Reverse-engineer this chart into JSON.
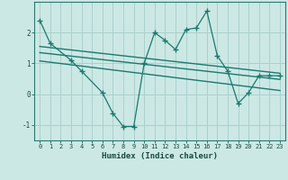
{
  "main_x": [
    0,
    1,
    3,
    4,
    6,
    7,
    8,
    9,
    10,
    11,
    12,
    13,
    14,
    15,
    16,
    17,
    18,
    19,
    20,
    21,
    22,
    23
  ],
  "main_y": [
    2.4,
    1.65,
    1.1,
    0.75,
    0.05,
    -0.62,
    -1.05,
    -1.05,
    1.0,
    2.0,
    1.75,
    1.45,
    2.1,
    2.15,
    2.7,
    1.25,
    0.75,
    -0.3,
    0.05,
    0.6,
    0.6,
    0.6
  ],
  "line1_x": [
    0,
    23
  ],
  "line1_y": [
    1.55,
    0.68
  ],
  "line2_x": [
    0,
    23
  ],
  "line2_y": [
    1.35,
    0.48
  ],
  "line3_x": [
    0,
    23
  ],
  "line3_y": [
    1.08,
    0.12
  ],
  "color_main": "#1a7a6e",
  "color_lines": "#1a7a6e",
  "bg_color": "#cce8e5",
  "grid_color": "#aad0cc",
  "xlabel": "Humidex (Indice chaleur)",
  "yticks": [
    -1,
    0,
    1,
    2
  ],
  "xticks": [
    0,
    1,
    2,
    3,
    4,
    5,
    6,
    7,
    8,
    9,
    10,
    11,
    12,
    13,
    14,
    15,
    16,
    17,
    18,
    19,
    20,
    21,
    22,
    23
  ],
  "xlim": [
    -0.5,
    23.5
  ],
  "ylim": [
    -1.5,
    3.0
  ]
}
